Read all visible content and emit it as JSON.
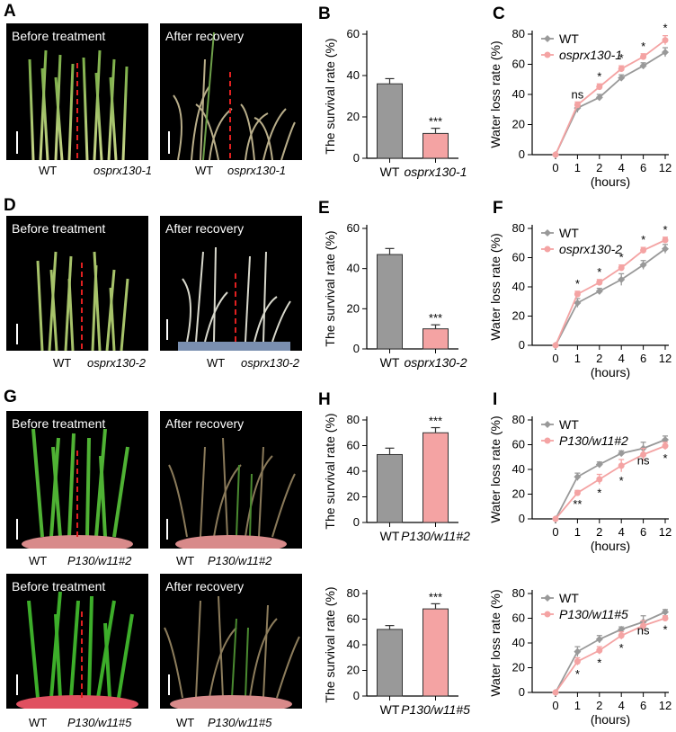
{
  "panels": [
    {
      "letter": "A",
      "photo_left": {
        "label": "Before treatment"
      },
      "photo_right": {
        "label": "After recovery"
      },
      "labels": {
        "wt": "WT",
        "mutant": "osprx130-1"
      }
    },
    {
      "letter": "D",
      "photo_left": {
        "label": "Before treatment"
      },
      "photo_right": {
        "label": "After recovery"
      },
      "labels": {
        "wt": "WT",
        "mutant": "osprx130-2"
      }
    },
    {
      "letter": "G",
      "photo_left": {
        "label": "Before treatment"
      },
      "photo_right": {
        "label": "After recovery"
      },
      "labels": {
        "wt": "WT",
        "mutant": "P130/w11#2"
      }
    },
    {
      "letter": "",
      "photo_left": {
        "label": "Before treatment"
      },
      "photo_right": {
        "label": "After recovery"
      },
      "labels": {
        "wt": "WT",
        "mutant": "P130/w11#5"
      }
    }
  ],
  "chart_data": [
    {
      "id": "B",
      "type": "bar",
      "letter": "B",
      "ylabel": "The survival rate (%)",
      "ylim": [
        0,
        60
      ],
      "yticks": [
        0,
        20,
        40,
        60
      ],
      "categories": [
        "WT",
        "osprx130-1"
      ],
      "values": [
        36,
        12
      ],
      "errors": [
        2.5,
        2.5
      ],
      "colors": [
        "#999999",
        "#f4a3a3"
      ],
      "significance": [
        "",
        "***"
      ]
    },
    {
      "id": "C",
      "type": "line",
      "letter": "C",
      "ylabel": "Water loss rate (%)",
      "xlabel": "(hours)",
      "ylim": [
        0,
        80
      ],
      "yticks": [
        0,
        20,
        40,
        60,
        80
      ],
      "x": [
        "0",
        "1",
        "2",
        "4",
        "6",
        "12"
      ],
      "series": [
        {
          "name": "WT",
          "color": "#999999",
          "values": [
            0,
            31,
            38,
            51,
            59,
            68
          ],
          "errors": [
            0,
            3,
            2,
            2,
            2,
            3
          ]
        },
        {
          "name": "osprx130-1",
          "color": "#f4a3a3",
          "values": [
            0,
            33,
            45,
            57,
            65,
            76
          ],
          "errors": [
            0,
            2,
            2,
            2,
            2,
            3
          ]
        }
      ],
      "significance": [
        "",
        "ns",
        "*",
        "*",
        "*",
        "*"
      ]
    },
    {
      "id": "E",
      "type": "bar",
      "letter": "E",
      "ylabel": "The survival rate (%)",
      "ylim": [
        0,
        60
      ],
      "yticks": [
        0,
        20,
        40,
        60
      ],
      "categories": [
        "WT",
        "osprx130-2"
      ],
      "values": [
        47,
        10
      ],
      "errors": [
        3,
        2
      ],
      "colors": [
        "#999999",
        "#f4a3a3"
      ],
      "significance": [
        "",
        "***"
      ]
    },
    {
      "id": "F",
      "type": "line",
      "letter": "F",
      "ylabel": "Water loss rate (%)",
      "xlabel": "(hours)",
      "ylim": [
        0,
        80
      ],
      "yticks": [
        0,
        20,
        40,
        60,
        80
      ],
      "x": [
        "0",
        "1",
        "2",
        "4",
        "6",
        "12"
      ],
      "series": [
        {
          "name": "WT",
          "color": "#999999",
          "values": [
            0,
            29,
            37,
            45,
            55,
            66
          ],
          "errors": [
            0,
            3,
            2,
            4,
            3,
            3
          ]
        },
        {
          "name": "osprx130-2",
          "color": "#f4a3a3",
          "values": [
            0,
            35,
            43,
            53,
            65,
            72
          ],
          "errors": [
            0,
            2,
            2,
            2,
            2,
            2
          ]
        }
      ],
      "significance": [
        "",
        "*",
        "*",
        "*",
        "*",
        "*"
      ]
    },
    {
      "id": "H1",
      "type": "bar",
      "letter": "H",
      "ylabel": "The survival rate (%)",
      "ylim": [
        0,
        80
      ],
      "yticks": [
        0,
        20,
        40,
        60,
        80
      ],
      "categories": [
        "WT",
        "P130/w11#2"
      ],
      "values": [
        53,
        70
      ],
      "errors": [
        5,
        4
      ],
      "colors": [
        "#999999",
        "#f4a3a3"
      ],
      "significance": [
        "",
        "***"
      ]
    },
    {
      "id": "I1",
      "type": "line",
      "letter": "I",
      "ylabel": "Water loss rate (%)",
      "xlabel": "(hours)",
      "ylim": [
        0,
        80
      ],
      "yticks": [
        0,
        20,
        40,
        60,
        80
      ],
      "x": [
        "0",
        "1",
        "2",
        "4",
        "6",
        "12"
      ],
      "series": [
        {
          "name": "WT",
          "color": "#999999",
          "values": [
            0,
            34,
            44,
            53,
            57,
            64
          ],
          "errors": [
            0,
            3,
            2,
            2,
            5,
            3
          ]
        },
        {
          "name": "P130/w11#2",
          "color": "#f4a3a3",
          "values": [
            0,
            21,
            32,
            43,
            52,
            59
          ],
          "errors": [
            0,
            2,
            4,
            5,
            5,
            3
          ]
        }
      ],
      "significance": [
        "",
        "**",
        "*",
        "*",
        "ns",
        "*"
      ]
    },
    {
      "id": "H2",
      "type": "bar",
      "letter": "",
      "ylabel": "The survival rate (%)",
      "ylim": [
        0,
        80
      ],
      "yticks": [
        0,
        20,
        40,
        60,
        80
      ],
      "categories": [
        "WT",
        "P130/w11#5"
      ],
      "values": [
        52,
        68
      ],
      "errors": [
        3,
        4
      ],
      "colors": [
        "#999999",
        "#f4a3a3"
      ],
      "significance": [
        "",
        "***"
      ]
    },
    {
      "id": "I2",
      "type": "line",
      "letter": "",
      "ylabel": "Water loss rate (%)",
      "xlabel": "(hours)",
      "ylim": [
        0,
        80
      ],
      "yticks": [
        0,
        20,
        40,
        60,
        80
      ],
      "x": [
        "0",
        "1",
        "2",
        "4",
        "6",
        "12"
      ],
      "series": [
        {
          "name": "WT",
          "color": "#999999",
          "values": [
            0,
            33,
            43,
            51,
            57,
            65
          ],
          "errors": [
            0,
            4,
            3,
            2,
            5,
            2
          ]
        },
        {
          "name": "P130/w11#5",
          "color": "#f4a3a3",
          "values": [
            0,
            25,
            34,
            46,
            54,
            60
          ],
          "errors": [
            0,
            3,
            3,
            3,
            4,
            2
          ]
        }
      ],
      "significance": [
        "",
        "*",
        "*",
        "*",
        "ns",
        "*"
      ]
    }
  ]
}
